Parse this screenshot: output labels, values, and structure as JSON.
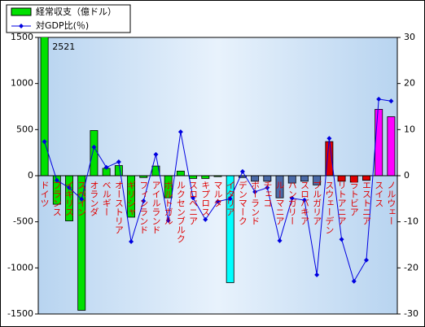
{
  "chart_data": {
    "type": "bar_line",
    "categories": [
      "ドイツ",
      "フランス",
      "イギリス",
      "スペイン",
      "オランダ",
      "ベルギー",
      "オーストリア",
      "ギリシャ",
      "フィンランド",
      "アイルランド",
      "ポルトガル",
      "ルクセンブルク",
      "スロベニア",
      "キプロス",
      "マルタ",
      "イタリア",
      "デンマーク",
      "ポーランド",
      "チェコ",
      "ルーマニア",
      "ハンガリー",
      "スロバキア",
      "ブルガリア",
      "スウェーデン",
      "リトアニア",
      "ラトビア",
      "エストニア",
      "スイス",
      "ノルウェー"
    ],
    "series": [
      {
        "name": "経常収支（億ドル）",
        "color": "#00e000",
        "colors": [
          "#00e000",
          "#00e000",
          "#00e000",
          "#00e000",
          "#00e000",
          "#00e000",
          "#00e000",
          "#00e000",
          "#00e000",
          "#00e000",
          "#00e000",
          "#00e000",
          "#00e000",
          "#00e000",
          "#00e000",
          "#00ffff",
          "#4a6aa8",
          "#4a6aa8",
          "#4a6aa8",
          "#4a6aa8",
          "#4a6aa8",
          "#4a6aa8",
          "#4a6aa8",
          "#e00000",
          "#e00000",
          "#e00000",
          "#e00000",
          "#ff00ff",
          "#ff00ff"
        ],
        "values": [
          2521,
          -310,
          -490,
          -1460,
          490,
          80,
          110,
          -450,
          -20,
          105,
          -240,
          50,
          -30,
          -30,
          -10,
          -1160,
          -20,
          -60,
          -60,
          -240,
          -80,
          -60,
          -100,
          370,
          -60,
          -70,
          -50,
          720,
          640
        ]
      },
      {
        "name": "対GDP比(％)",
        "color": "#0000e0",
        "axis": "y2",
        "values": [
          7.4,
          -1,
          -2.6,
          -5.1,
          6.2,
          1.8,
          3,
          -14.3,
          -5.5,
          4.6,
          -9.7,
          9.5,
          -4.8,
          -9.5,
          -5.6,
          -5,
          0.9,
          -3.5,
          -2.6,
          -14.1,
          -4.9,
          -5.3,
          -21.5,
          8.1,
          -13.8,
          -22.9,
          -18.3,
          16.6,
          16.2
        ]
      }
    ],
    "ylim": [
      -1500,
      1500
    ],
    "yticks": [
      -1500,
      -1000,
      -500,
      0,
      500,
      1000,
      1500
    ],
    "y2lim": [
      -30,
      30
    ],
    "y2ticks": [
      -30,
      -20,
      -10,
      0,
      10,
      20,
      30
    ]
  }
}
